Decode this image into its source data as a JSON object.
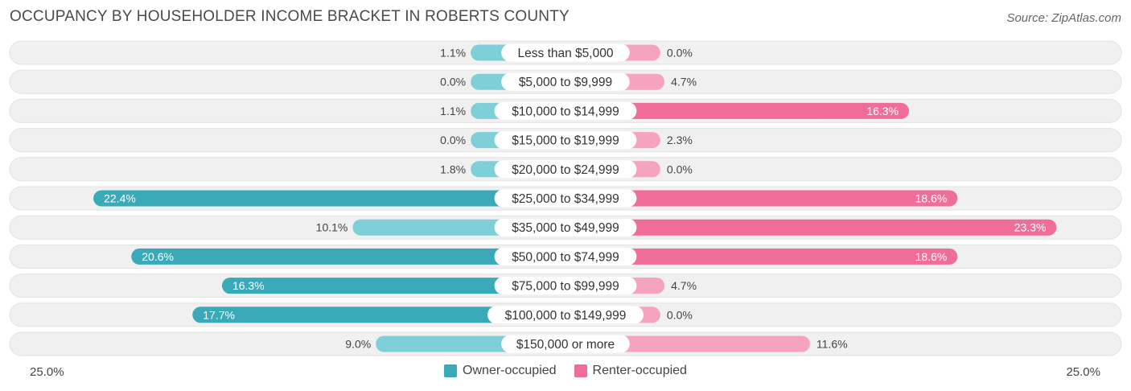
{
  "title": "OCCUPANCY BY HOUSEHOLDER INCOME BRACKET IN ROBERTS COUNTY",
  "source": "Source: ZipAtlas.com",
  "axis": {
    "left_label": "25.0%",
    "right_label": "25.0%"
  },
  "legend": {
    "owner": "Owner-occupied",
    "renter": "Renter-occupied"
  },
  "colors": {
    "owner_light": "#7ecfd8",
    "owner_dark": "#3aa9b8",
    "renter_light": "#f5a3bf",
    "renter_dark": "#ef6d98",
    "row_bg": "#f0f0f0",
    "row_border": "#e2e2e2"
  },
  "chart_data": {
    "type": "bar",
    "orientation": "horizontal-diverging",
    "title": "OCCUPANCY BY HOUSEHOLDER INCOME BRACKET IN ROBERTS COUNTY",
    "xlim": [
      -25,
      25
    ],
    "categories": [
      "Less than $5,000",
      "$5,000 to $9,999",
      "$10,000 to $14,999",
      "$15,000 to $19,999",
      "$20,000 to $24,999",
      "$25,000 to $34,999",
      "$35,000 to $49,999",
      "$50,000 to $74,999",
      "$75,000 to $99,999",
      "$100,000 to $149,999",
      "$150,000 or more"
    ],
    "series": [
      {
        "name": "Owner-occupied",
        "values": [
          1.1,
          0.0,
          1.1,
          0.0,
          1.8,
          22.4,
          10.1,
          20.6,
          16.3,
          17.7,
          9.0
        ],
        "labels": [
          "1.1%",
          "0.0%",
          "1.1%",
          "0.0%",
          "1.8%",
          "22.4%",
          "10.1%",
          "20.6%",
          "16.3%",
          "17.7%",
          "9.0%"
        ]
      },
      {
        "name": "Renter-occupied",
        "values": [
          0.0,
          4.7,
          16.3,
          2.3,
          0.0,
          18.6,
          23.3,
          18.6,
          4.7,
          0.0,
          11.6
        ],
        "labels": [
          "0.0%",
          "4.7%",
          "16.3%",
          "2.3%",
          "0.0%",
          "18.6%",
          "23.3%",
          "18.6%",
          "4.7%",
          "0.0%",
          "11.6%"
        ]
      }
    ]
  }
}
